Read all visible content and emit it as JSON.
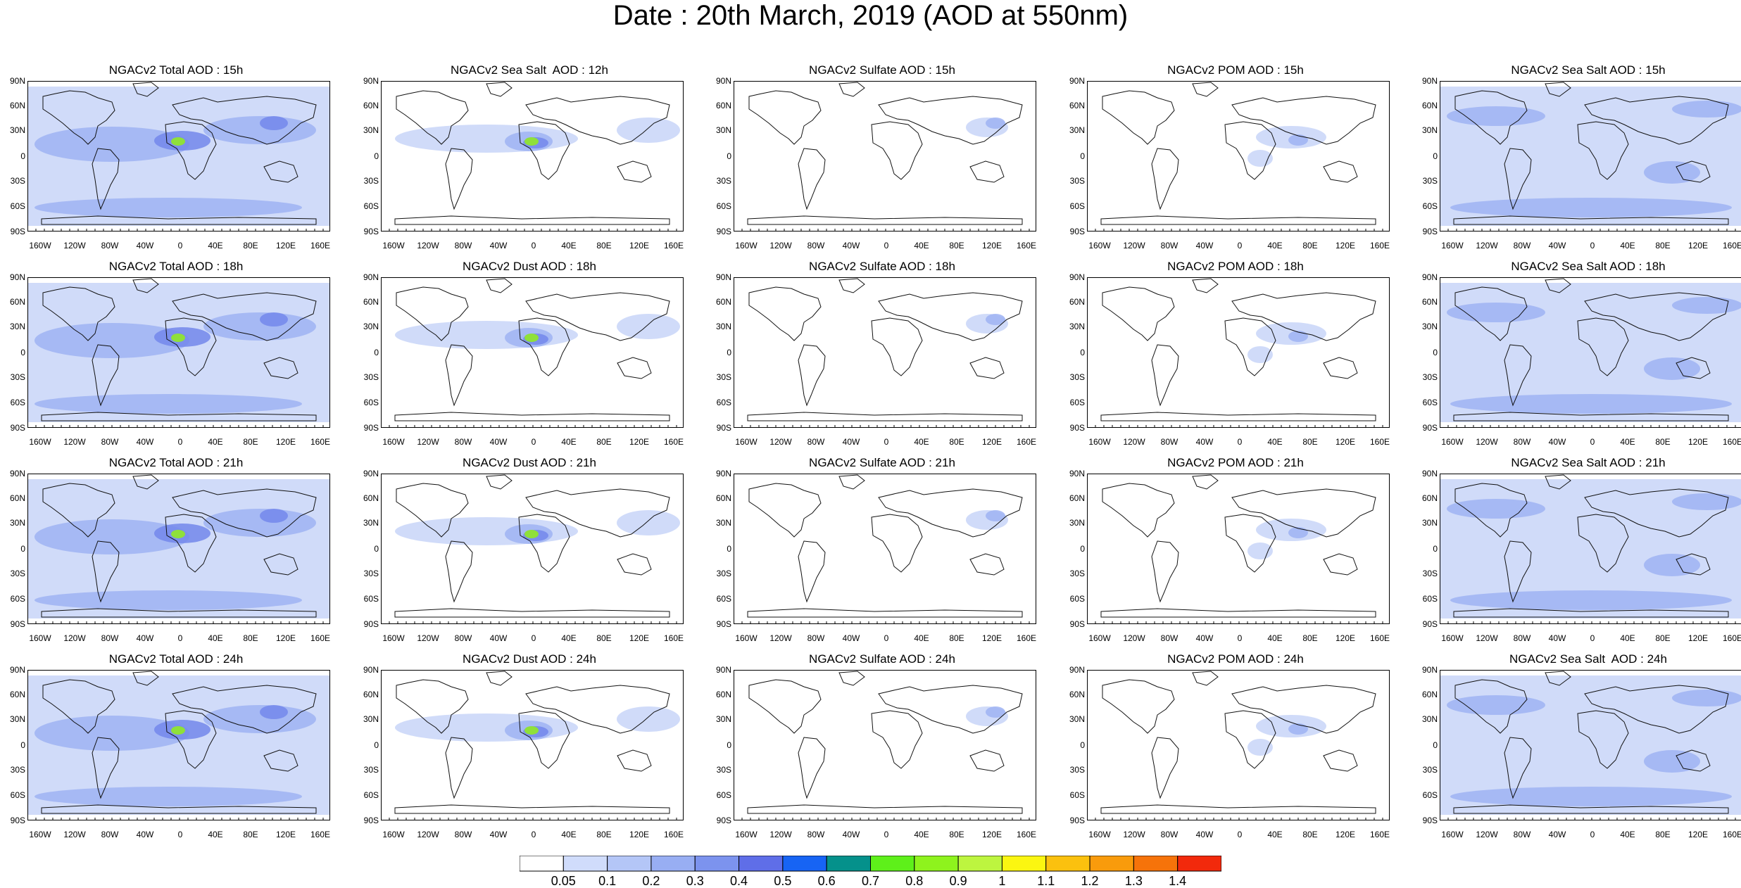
{
  "title": "Date : 20th March, 2019 (AOD at 550nm)",
  "panels": [
    [
      "NGACv2 Total AOD : 15h",
      "NGACv2 Sea Salt  AOD : 12h",
      "NGACv2 Sulfate AOD : 15h",
      "NGACv2 POM AOD : 15h",
      "NGACv2 Sea Salt AOD : 15h"
    ],
    [
      "NGACv2 Total AOD : 18h",
      "NGACv2 Dust AOD : 18h",
      "NGACv2 Sulfate AOD : 18h",
      "NGACv2 POM AOD : 18h",
      "NGACv2 Sea Salt AOD : 18h"
    ],
    [
      "NGACv2 Total AOD : 21h",
      "NGACv2 Dust AOD : 21h",
      "NGACv2 Sulfate AOD : 21h",
      "NGACv2 POM AOD : 21h",
      "NGACv2 Sea Salt AOD : 21h"
    ],
    [
      "NGACv2 Total AOD : 24h",
      "NGACv2 Dust AOD : 24h",
      "NGACv2 Sulfate AOD : 24h",
      "NGACv2 POM AOD : 24h",
      "NGACv2 Sea Salt  AOD : 24h"
    ]
  ],
  "lat_labels": [
    "90N",
    "60N",
    "30N",
    "0",
    "30S",
    "60S",
    "90S"
  ],
  "lon_labels": [
    "160W",
    "120W",
    "80W",
    "40W",
    "0",
    "40E",
    "80E",
    "120E",
    "160E"
  ],
  "colorbar": {
    "labels": [
      "0.05",
      "0.1",
      "0.2",
      "0.3",
      "0.4",
      "0.5",
      "0.6",
      "0.7",
      "0.8",
      "0.9",
      "1",
      "1.1",
      "1.2",
      "1.3",
      "1.4"
    ],
    "colors": [
      "#ffffff",
      "#d0dcfb",
      "#b4c6f7",
      "#98aef3",
      "#7c93ee",
      "#5f6ee8",
      "#1764f4",
      "#05918b",
      "#5ef01a",
      "#8ef31d",
      "#bdf53f",
      "#fbf611",
      "#fbc10e",
      "#f99b0c",
      "#f6730a",
      "#f2290c"
    ]
  },
  "plume_colors": {
    "light": "#c8d5f8",
    "mid": "#9fb3f3",
    "dark": "#7387eb",
    "dust_core": "#8fe03a"
  }
}
